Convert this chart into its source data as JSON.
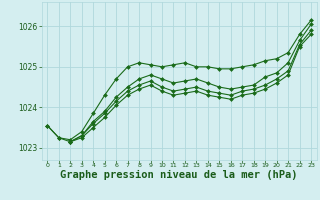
{
  "bg_color": "#d4eef0",
  "grid_color": "#b0d8dc",
  "line_color": "#1a6b1a",
  "marker_color": "#1a6b1a",
  "title": "Graphe pression niveau de la mer (hPa)",
  "title_color": "#1a5c1a",
  "title_fontsize": 7.5,
  "xlim": [
    -0.5,
    23.5
  ],
  "ylim": [
    1022.7,
    1026.6
  ],
  "yticks": [
    1023,
    1024,
    1025,
    1026
  ],
  "xticks": [
    0,
    1,
    2,
    3,
    4,
    5,
    6,
    7,
    8,
    9,
    10,
    11,
    12,
    13,
    14,
    15,
    16,
    17,
    18,
    19,
    20,
    21,
    22,
    23
  ],
  "series": [
    {
      "x": [
        0,
        1,
        2,
        3,
        4,
        5,
        6,
        7,
        8,
        9,
        10,
        11,
        12,
        13,
        14,
        15,
        16,
        17,
        18,
        19,
        20,
        21,
        22,
        23
      ],
      "y": [
        1023.55,
        1023.25,
        1023.2,
        1023.4,
        1023.85,
        1024.3,
        1024.7,
        1025.0,
        1025.1,
        1025.05,
        1025.0,
        1025.05,
        1025.1,
        1025.0,
        1025.0,
        1024.95,
        1024.95,
        1025.0,
        1025.05,
        1025.15,
        1025.2,
        1025.35,
        1025.8,
        1026.15
      ]
    },
    {
      "x": [
        0,
        1,
        2,
        3,
        4,
        5,
        6,
        7,
        8,
        9,
        10,
        11,
        12,
        13,
        14,
        15,
        16,
        17,
        18,
        19,
        20,
        21,
        22,
        23
      ],
      "y": [
        1023.55,
        1023.25,
        1023.15,
        1023.3,
        1023.65,
        1023.9,
        1024.25,
        1024.5,
        1024.7,
        1024.8,
        1024.7,
        1024.6,
        1024.65,
        1024.7,
        1024.6,
        1024.5,
        1024.45,
        1024.5,
        1024.55,
        1024.75,
        1024.85,
        1025.1,
        1025.65,
        1026.05
      ]
    },
    {
      "x": [
        2,
        3,
        4,
        5,
        6,
        7,
        8,
        9,
        10,
        11,
        12,
        13,
        14,
        15,
        16,
        17,
        18,
        19,
        20,
        21,
        22,
        23
      ],
      "y": [
        1023.15,
        1023.3,
        1023.6,
        1023.85,
        1024.15,
        1024.4,
        1024.55,
        1024.65,
        1024.5,
        1024.4,
        1024.45,
        1024.5,
        1024.4,
        1024.35,
        1024.3,
        1024.4,
        1024.45,
        1024.55,
        1024.7,
        1024.9,
        1025.55,
        1025.9
      ]
    },
    {
      "x": [
        2,
        3,
        4,
        5,
        6,
        7,
        8,
        9,
        10,
        11,
        12,
        13,
        14,
        15,
        16,
        17,
        18,
        19,
        20,
        21,
        22,
        23
      ],
      "y": [
        1023.15,
        1023.25,
        1023.5,
        1023.75,
        1024.05,
        1024.3,
        1024.45,
        1024.55,
        1024.4,
        1024.3,
        1024.35,
        1024.4,
        1024.3,
        1024.25,
        1024.2,
        1024.3,
        1024.35,
        1024.45,
        1024.6,
        1024.8,
        1025.5,
        1025.8
      ]
    }
  ]
}
